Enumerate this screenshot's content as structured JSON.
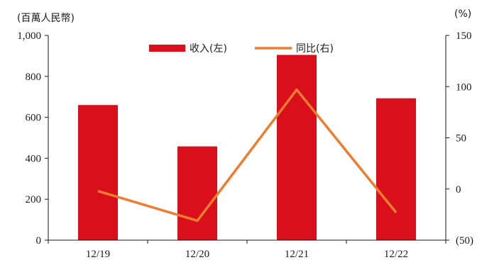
{
  "chart_data": {
    "type": "bar",
    "categories": [
      "12/19",
      "12/20",
      "12/21",
      "12/22"
    ],
    "series": [
      {
        "name": "收入(左)",
        "type": "bar",
        "axis": "left",
        "color": "#d9101b",
        "values": [
          660,
          458,
          905,
          693
        ]
      },
      {
        "name": "同比(右)",
        "type": "line",
        "axis": "right",
        "color": "#ed7d31",
        "values": [
          -2,
          -31,
          97,
          -23
        ]
      }
    ],
    "left_axis": {
      "unit_label": "(百萬人民幣)",
      "ylim": [
        0,
        1000
      ],
      "ticks": [
        "0",
        "200",
        "400",
        "600",
        "800",
        "1,000"
      ]
    },
    "right_axis": {
      "unit_label": "(%)",
      "ylim": [
        -50,
        150
      ],
      "ticks": [
        "(50)",
        "0",
        "50",
        "100",
        "150"
      ]
    },
    "legend_position": "top-center",
    "grid": false
  }
}
